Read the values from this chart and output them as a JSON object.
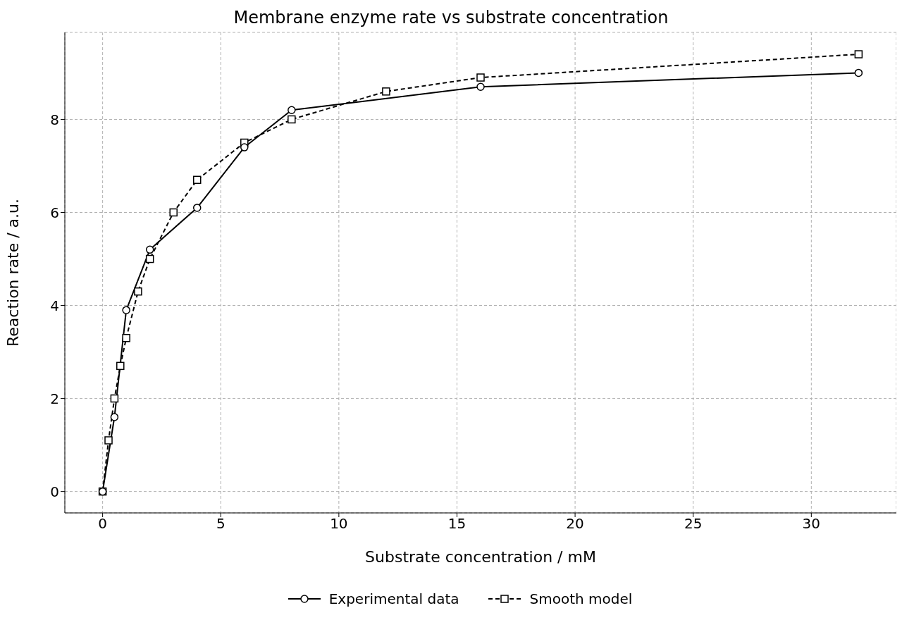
{
  "chart_data": {
    "type": "line",
    "title": "Membrane enzyme rate vs substrate concentration",
    "xlabel": "Substrate concentration / mM",
    "ylabel": "Reaction rate / a.u.",
    "series": [
      {
        "name": "Experimental data",
        "color": "#000000",
        "marker": "circle",
        "line_style": "solid",
        "x": [
          0,
          0.5,
          1,
          2,
          4,
          6,
          8,
          16,
          32
        ],
        "values": [
          0,
          1.6,
          3.9,
          5.2,
          6.1,
          7.4,
          8.2,
          8.7,
          9.0
        ]
      },
      {
        "name": "Smooth model",
        "color": "#000000",
        "marker": "square",
        "line_style": "dashed",
        "x": [
          0,
          0.25,
          0.5,
          0.75,
          1,
          1.5,
          2,
          3,
          4,
          6,
          8,
          12,
          16,
          32
        ],
        "values": [
          0,
          1.1,
          2.0,
          2.7,
          3.3,
          4.3,
          5.0,
          6.0,
          6.7,
          7.5,
          8.0,
          8.6,
          8.9,
          9.4
        ]
      }
    ],
    "xlim": [
      -1.6,
      33.6
    ],
    "xticks": [
      0,
      5,
      10,
      15,
      20,
      25,
      30
    ],
    "ylim": [
      -0.46,
      9.87
    ],
    "yticks": [
      0,
      2,
      4,
      6,
      8
    ],
    "grid": true,
    "legend": "bottom"
  }
}
